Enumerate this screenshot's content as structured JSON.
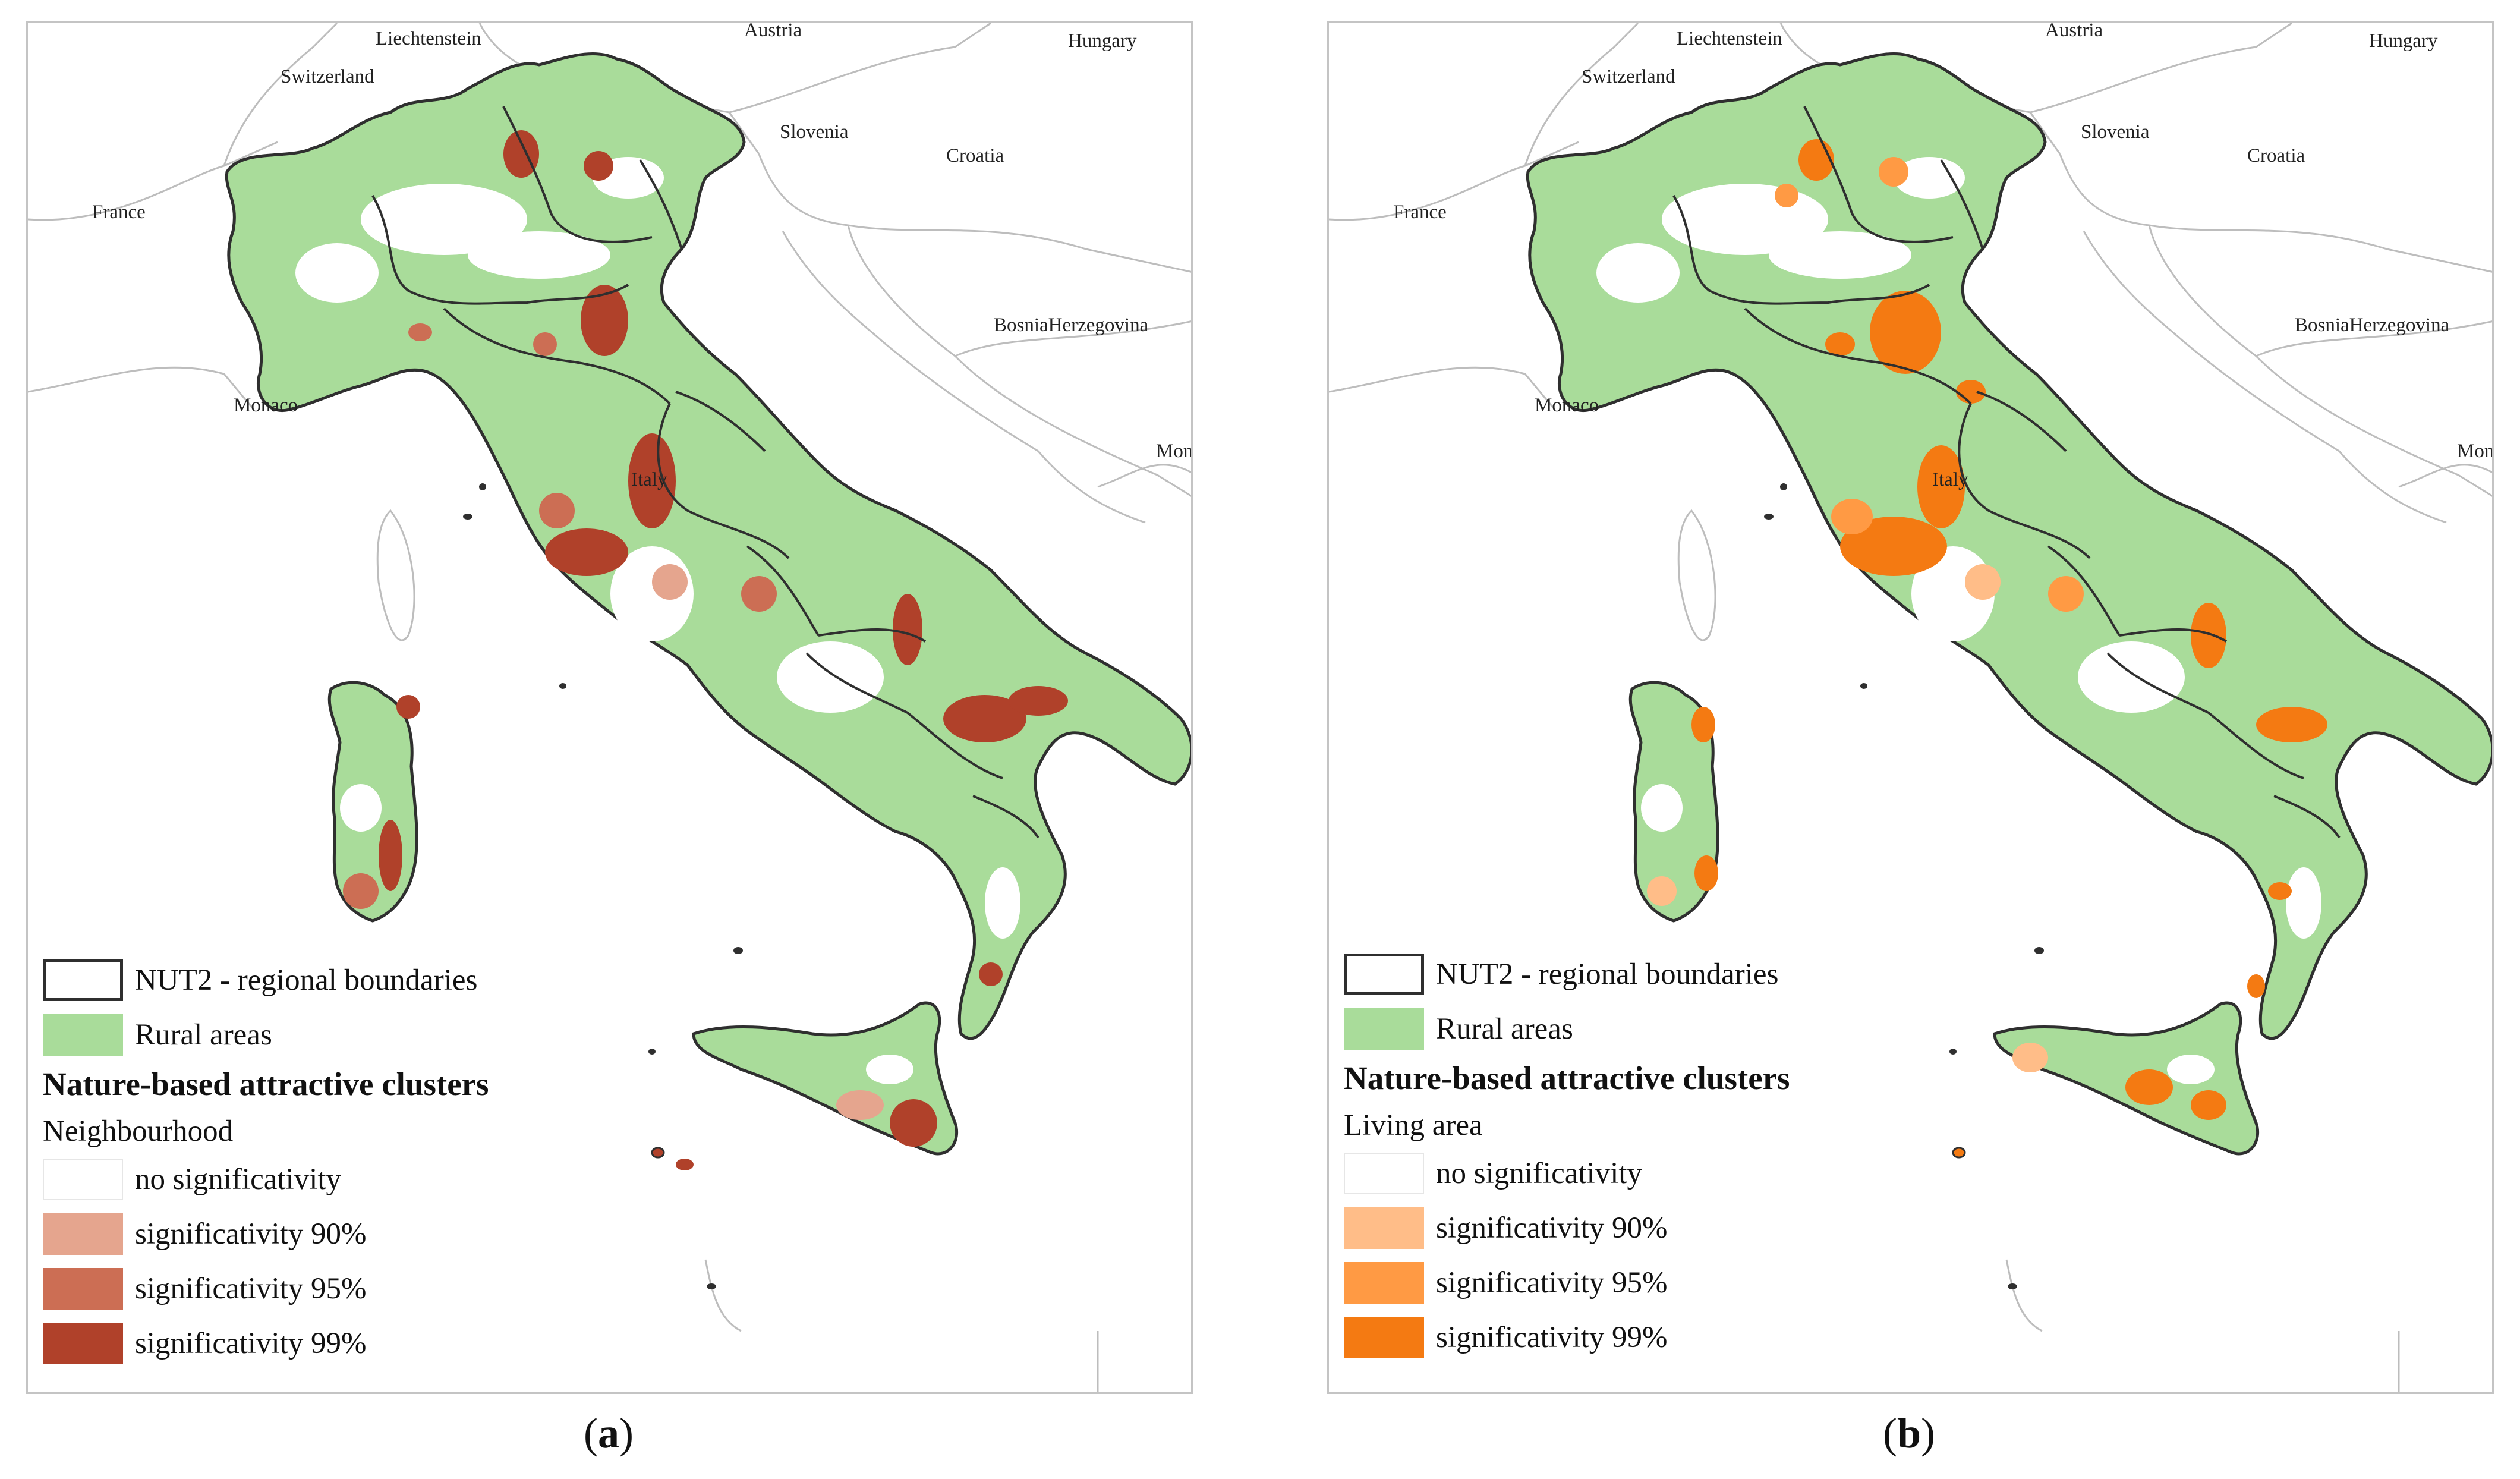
{
  "colors": {
    "rural": "#a9dc9a",
    "boundary": "#2f2f2f",
    "neighbourhood": [
      "#ffffff",
      "#e5a58e",
      "#cc6e54",
      "#b0412a"
    ],
    "living_area": [
      "#ffffff",
      "#ffbd88",
      "#ff9a44",
      "#f47a12"
    ]
  },
  "panels": [
    {
      "id": "a",
      "caption_letter": "a",
      "labels": {
        "liechtenstein": "Liechtenstein",
        "austria": "Austria",
        "hungary": "Hungary",
        "switzerland": "Switzerland",
        "slovenia": "Slovenia",
        "croatia": "Croatia",
        "france": "France",
        "bosnia": "BosniaHerzegovina",
        "monaco": "Monaco",
        "italy": "Italy",
        "mon": "Mon"
      },
      "legend": {
        "boundaries": "NUT2 - regional boundaries",
        "rural": "Rural areas",
        "heading": "Nature-based attractive clusters",
        "subheading": "Neighbourhood",
        "classes": [
          "no significativity",
          "significativity 90%",
          "significativity 95%",
          "significativity 99%"
        ]
      }
    },
    {
      "id": "b",
      "caption_letter": "b",
      "labels": {
        "liechtenstein": "Liechtenstein",
        "austria": "Austria",
        "hungary": "Hungary",
        "switzerland": "Switzerland",
        "slovenia": "Slovenia",
        "croatia": "Croatia",
        "france": "France",
        "bosnia": "BosniaHerzegovina",
        "monaco": "Monaco",
        "italy": "Italy",
        "mon": "Mon"
      },
      "legend": {
        "boundaries": "NUT2 - regional boundaries",
        "rural": "Rural areas",
        "heading": "Nature-based attractive clusters",
        "subheading": "Living area",
        "classes": [
          "no significativity",
          "significativity 90%",
          "significativity 95%",
          "significativity 99%"
        ]
      }
    }
  ]
}
